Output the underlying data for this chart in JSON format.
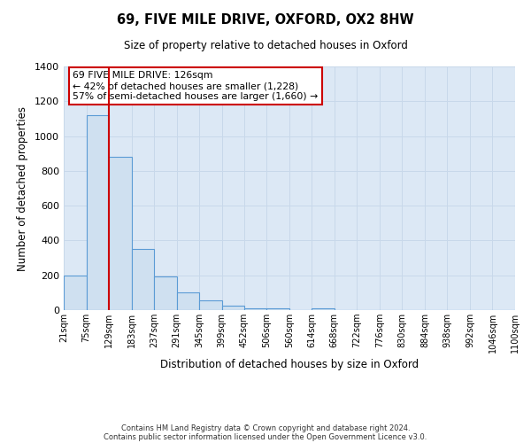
{
  "title": "69, FIVE MILE DRIVE, OXFORD, OX2 8HW",
  "subtitle": "Size of property relative to detached houses in Oxford",
  "xlabel": "Distribution of detached houses by size in Oxford",
  "ylabel": "Number of detached properties",
  "bar_values": [
    200,
    1120,
    880,
    350,
    195,
    100,
    55,
    25,
    12,
    12,
    0,
    12,
    0,
    0,
    0,
    0,
    0,
    0,
    0,
    0
  ],
  "bin_edges": [
    21,
    75,
    129,
    183,
    237,
    291,
    345,
    399,
    452,
    506,
    560,
    614,
    668,
    722,
    776,
    830,
    884,
    938,
    992,
    1046,
    1100
  ],
  "tick_labels": [
    "21sqm",
    "75sqm",
    "129sqm",
    "183sqm",
    "237sqm",
    "291sqm",
    "345sqm",
    "399sqm",
    "452sqm",
    "506sqm",
    "560sqm",
    "614sqm",
    "668sqm",
    "722sqm",
    "776sqm",
    "830sqm",
    "884sqm",
    "938sqm",
    "992sqm",
    "1046sqm",
    "1100sqm"
  ],
  "property_size": 126,
  "vline_x": 129,
  "bar_facecolor": "#cfe0f0",
  "bar_edgecolor": "#5b9bd5",
  "vline_color": "#cc0000",
  "ylim": [
    0,
    1400
  ],
  "yticks": [
    0,
    200,
    400,
    600,
    800,
    1000,
    1200,
    1400
  ],
  "grid_color": "#c8d8ea",
  "background_color": "#dce8f5",
  "annotation_title": "69 FIVE MILE DRIVE: 126sqm",
  "annotation_line2": "← 42% of detached houses are smaller (1,228)",
  "annotation_line3": "57% of semi-detached houses are larger (1,660) →",
  "annotation_box_edgecolor": "#cc0000",
  "footer_line1": "Contains HM Land Registry data © Crown copyright and database right 2024.",
  "footer_line2": "Contains public sector information licensed under the Open Government Licence v3.0."
}
